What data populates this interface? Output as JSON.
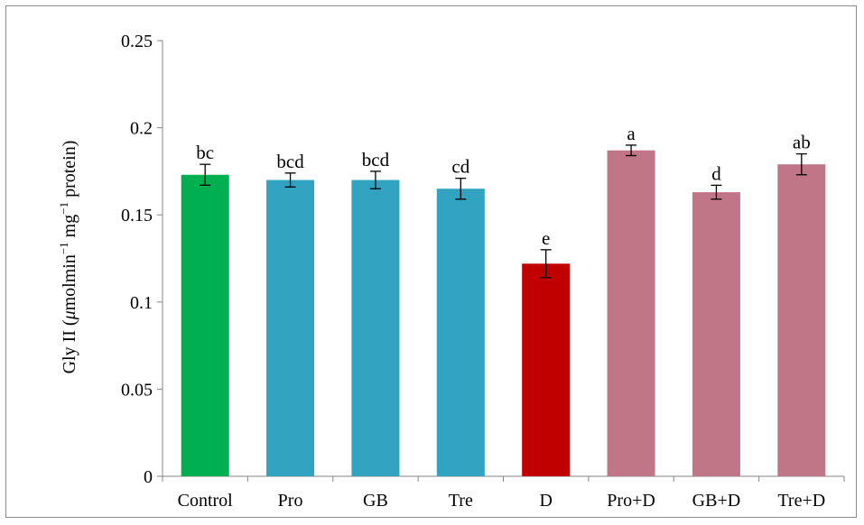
{
  "chart_data": {
    "type": "bar",
    "title": "",
    "xlabel": "",
    "ylabel_prefix": "Gly II (",
    "ylabel_mu": "μ",
    "ylabel_mid": "molmin",
    "ylabel_exp1": "−1",
    "ylabel_mg": " mg",
    "ylabel_exp2": "−1",
    "ylabel_suffix": " protein)",
    "ylim": [
      0,
      0.25
    ],
    "yticks": [
      0,
      0.05,
      0.1,
      0.15,
      0.2,
      0.25
    ],
    "ytick_labels": [
      "0",
      "0.05",
      "0.1",
      "0.15",
      "0.2",
      "0.25"
    ],
    "grid": false,
    "legend": "none",
    "categories": [
      "Control",
      "Pro",
      "GB",
      "Tre",
      "D",
      "Pro+D",
      "GB+D",
      "Tre+D"
    ],
    "values": [
      0.173,
      0.17,
      0.17,
      0.165,
      0.122,
      0.187,
      0.163,
      0.179
    ],
    "errors": [
      0.006,
      0.004,
      0.005,
      0.006,
      0.008,
      0.003,
      0.004,
      0.006
    ],
    "significance_letters": [
      "bc",
      "bcd",
      "bcd",
      "cd",
      "e",
      "a",
      "d",
      "ab"
    ],
    "colors": [
      "#00b050",
      "#31a2c0",
      "#31a2c0",
      "#31a2c0",
      "#c00000",
      "#c07686",
      "#c07686",
      "#c07686"
    ]
  }
}
